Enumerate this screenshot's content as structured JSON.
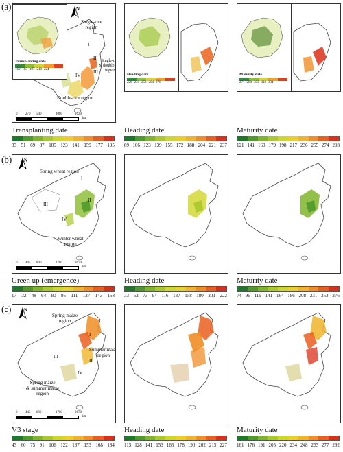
{
  "panel_labels": {
    "a": "(a)",
    "b": "(b)",
    "c": "(c)"
  },
  "rice": {
    "maps": [
      {
        "title": "Transplanting date",
        "ticks": [
          "33",
          "51",
          "69",
          "87",
          "105",
          "123",
          "141",
          "159",
          "177",
          "195"
        ]
      },
      {
        "title": "Heading date",
        "ticks": [
          "89",
          "106",
          "123",
          "139",
          "155",
          "172",
          "188",
          "204",
          "221",
          "237"
        ]
      },
      {
        "title": "Maturity date",
        "ticks": [
          "121",
          "141",
          "160",
          "179",
          "198",
          "217",
          "236",
          "255",
          "274",
          "293"
        ]
      }
    ],
    "insets": [
      {
        "title": "Transplanting date",
        "ticks": [
          "169",
          "183",
          "197",
          "210",
          "224"
        ]
      },
      {
        "title": "Heading date",
        "ticks": [
          "226",
          "240",
          "252",
          "264",
          "276"
        ]
      },
      {
        "title": "Maturity date",
        "ticks": [
          "271",
          "288",
          "303",
          "318",
          "334"
        ]
      }
    ],
    "annotations": {
      "single_rice": "Single-rice\nregion",
      "single_double": "Single-rice\n& double-rice\nregion",
      "double_rice": "Double-rice region"
    },
    "regions": [
      "I",
      "II",
      "III",
      "IV"
    ],
    "scale": {
      "nums": [
        "0",
        "270",
        "540",
        "1080",
        "1620"
      ],
      "unit": "km"
    }
  },
  "wheat": {
    "maps": [
      {
        "title": "Green up (emergence)",
        "ticks": [
          "17",
          "32",
          "48",
          "64",
          "80",
          "95",
          "111",
          "127",
          "143",
          "158"
        ]
      },
      {
        "title": "Heading date",
        "ticks": [
          "33",
          "52",
          "73",
          "94",
          "116",
          "137",
          "158",
          "180",
          "201",
          "222"
        ]
      },
      {
        "title": "Maturity date",
        "ticks": [
          "74",
          "96",
          "119",
          "141",
          "164",
          "186",
          "208",
          "231",
          "253",
          "276"
        ]
      }
    ],
    "annotations": {
      "spring_wheat": "Spring wheat region",
      "winter_wheat": "Winter wheat\nregion"
    },
    "regions": [
      "I",
      "II",
      "III",
      "IV"
    ],
    "scale": {
      "nums": [
        "0",
        "445",
        "890",
        "1780",
        "2670"
      ],
      "unit": "km"
    }
  },
  "maize": {
    "maps": [
      {
        "title": "V3 stage",
        "ticks": [
          "43",
          "60",
          "75",
          "91",
          "106",
          "122",
          "137",
          "153",
          "168",
          "184"
        ]
      },
      {
        "title": "Heading date",
        "ticks": [
          "115",
          "128",
          "141",
          "153",
          "165",
          "178",
          "190",
          "202",
          "215",
          "227"
        ]
      },
      {
        "title": "Maturity date",
        "ticks": [
          "161",
          "176",
          "191",
          "205",
          "220",
          "234",
          "248",
          "263",
          "277",
          "292"
        ]
      }
    ],
    "annotations": {
      "spring_maize": "Spring maize\nregion",
      "summer_maize": "Summer maize\nregion",
      "spring_summer": "Spring maize\n& summer maize\nregion"
    },
    "regions": [
      "I",
      "II",
      "III",
      "IV"
    ],
    "scale": {
      "nums": [
        "0",
        "445",
        "890",
        "1780",
        "2670"
      ],
      "unit": "km"
    }
  },
  "north": "N",
  "colors": {
    "ramp": [
      "#1a7a2a",
      "#4f9a2a",
      "#7fb52a",
      "#a9c82a",
      "#cfd62a",
      "#e8cf2a",
      "#f0b42a",
      "#f08d25",
      "#ea5f20",
      "#d9301a"
    ],
    "inset_ramp": [
      "#2f8a3a",
      "#8fbf3a",
      "#d7d23a",
      "#f0a02a",
      "#e0401c"
    ],
    "border": "#444444"
  }
}
